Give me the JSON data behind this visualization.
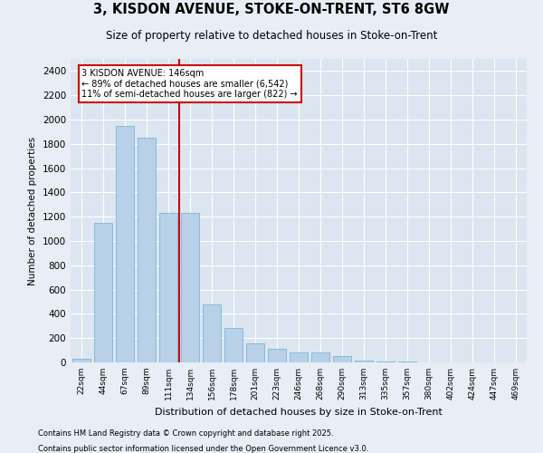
{
  "title_line1": "3, KISDON AVENUE, STOKE-ON-TRENT, ST6 8GW",
  "title_line2": "Size of property relative to detached houses in Stoke-on-Trent",
  "xlabel": "Distribution of detached houses by size in Stoke-on-Trent",
  "ylabel": "Number of detached properties",
  "categories": [
    "22sqm",
    "44sqm",
    "67sqm",
    "89sqm",
    "111sqm",
    "134sqm",
    "156sqm",
    "178sqm",
    "201sqm",
    "223sqm",
    "246sqm",
    "268sqm",
    "290sqm",
    "313sqm",
    "335sqm",
    "357sqm",
    "380sqm",
    "402sqm",
    "424sqm",
    "447sqm",
    "469sqm"
  ],
  "values": [
    30,
    1150,
    1950,
    1850,
    1230,
    1230,
    480,
    280,
    160,
    110,
    80,
    80,
    50,
    15,
    8,
    5,
    3,
    2,
    1,
    1,
    1
  ],
  "bar_color": "#b8d0e8",
  "bar_edge_color": "#6aaed6",
  "annotation_text": "3 KISDON AVENUE: 146sqm\n← 89% of detached houses are smaller (6,542)\n11% of semi-detached houses are larger (822) →",
  "annotation_box_color": "#ffffff",
  "annotation_box_edge": "#cc0000",
  "vline_color": "#cc0000",
  "ylim": [
    0,
    2500
  ],
  "yticks": [
    0,
    200,
    400,
    600,
    800,
    1000,
    1200,
    1400,
    1600,
    1800,
    2000,
    2200,
    2400
  ],
  "bg_color": "#e8eef5",
  "plot_bg_color": "#dce6f0",
  "footer_line1": "Contains HM Land Registry data © Crown copyright and database right 2025.",
  "footer_line2": "Contains public sector information licensed under the Open Government Licence v3.0."
}
